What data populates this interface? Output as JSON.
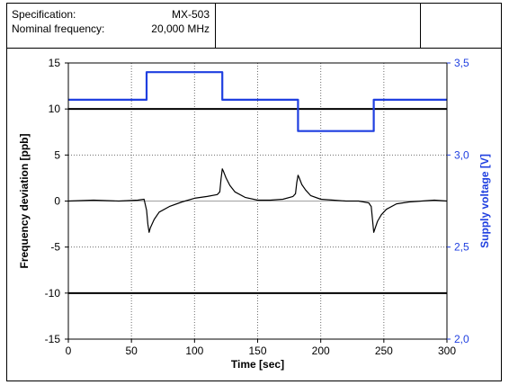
{
  "header": {
    "rows": [
      {
        "label": "Specification:",
        "value": "MX-503"
      },
      {
        "label": "Nominal frequency:",
        "value": "20,000 MHz"
      }
    ]
  },
  "chart_data": {
    "type": "line",
    "title": "",
    "xlabel": "Time [sec]",
    "ylabel_left": "Frequency deviation [ppb]",
    "ylabel_right": "Supply voltage [V]",
    "xlim": [
      0,
      300
    ],
    "ylim_left": [
      -15,
      15
    ],
    "ylim_right": [
      2.0,
      3.5
    ],
    "x_ticks": [
      "0",
      "50",
      "100",
      "150",
      "200",
      "250",
      "300"
    ],
    "y_ticks_left": [
      "15",
      "10",
      "5",
      "0",
      "-5",
      "-10",
      "-15"
    ],
    "y_ticks_right": [
      "3,5",
      "3,0",
      "2,5",
      "2,0"
    ],
    "grid": true,
    "limit_lines_left": [
      10,
      -10
    ],
    "colors": {
      "voltage": "#1f3fe0",
      "deviation": "#000000",
      "grid": "#6e6e6e"
    },
    "series": [
      {
        "axis": "right",
        "step": true,
        "x": [
          0,
          62,
          62,
          122,
          122,
          182,
          182,
          242,
          242,
          300
        ],
        "y": [
          3.3,
          3.3,
          3.45,
          3.45,
          3.3,
          3.3,
          3.13,
          3.13,
          3.3,
          3.3
        ]
      },
      {
        "axis": "left",
        "x": [
          0,
          20,
          40,
          55,
          60,
          62,
          63,
          64,
          65,
          68,
          72,
          80,
          90,
          100,
          110,
          118,
          120,
          121,
          122,
          123,
          125,
          128,
          132,
          140,
          150,
          160,
          170,
          178,
          180,
          181,
          182,
          183,
          185,
          188,
          192,
          200,
          210,
          220,
          230,
          238,
          240,
          241,
          242,
          243,
          245,
          248,
          252,
          260,
          270,
          280,
          290,
          300
        ],
        "y": [
          0,
          0.1,
          0,
          0.1,
          0.2,
          -1.0,
          -2.5,
          -3.4,
          -2.9,
          -2.0,
          -1.2,
          -0.6,
          -0.1,
          0.3,
          0.5,
          0.7,
          1.0,
          2.4,
          3.5,
          3.2,
          2.5,
          1.7,
          1.0,
          0.4,
          0.1,
          0.1,
          0.2,
          0.5,
          0.8,
          2.0,
          2.8,
          2.5,
          1.8,
          1.2,
          0.6,
          0.2,
          0.1,
          0,
          0,
          -0.2,
          -0.6,
          -2.0,
          -3.4,
          -3.0,
          -2.2,
          -1.5,
          -0.9,
          -0.3,
          -0.1,
          0,
          0.1,
          0
        ]
      }
    ]
  }
}
